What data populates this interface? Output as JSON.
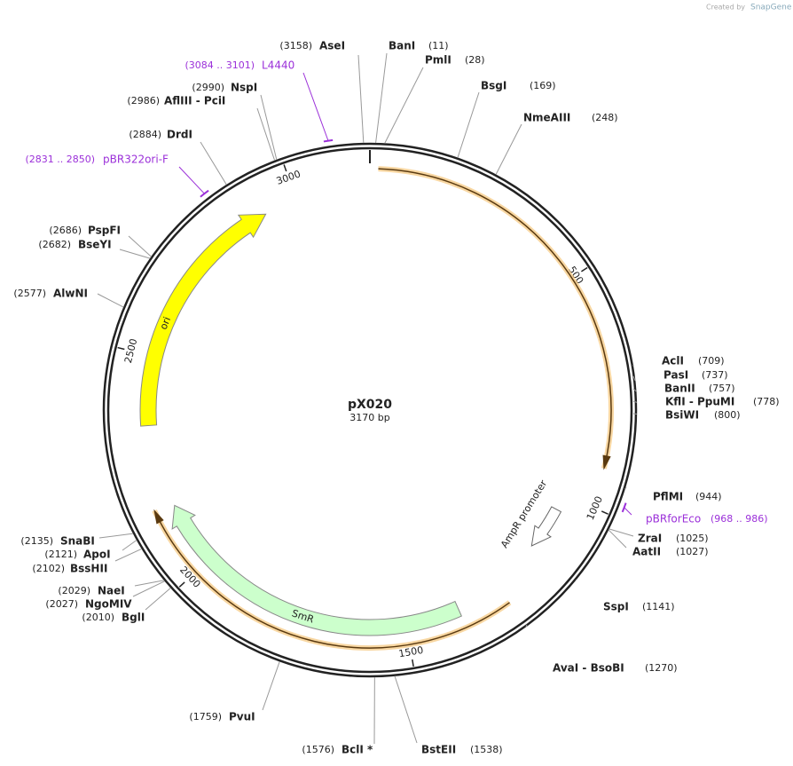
{
  "header": {
    "created_by": "Created by",
    "brand": "SnapGene"
  },
  "map": {
    "name": "pX020",
    "length": {
      "value": 3170,
      "label": "3170 bp"
    },
    "ticks": [
      500,
      1000,
      1500,
      2000,
      2500,
      3000
    ],
    "sites": [
      {
        "name": "AseI",
        "position": {
          "value": 3158,
          "label": "(3158)"
        }
      },
      {
        "name": "BanI",
        "position": {
          "value": 11,
          "label": "(11)"
        }
      },
      {
        "name": "PmlI",
        "position": {
          "value": 28,
          "label": "(28)"
        }
      },
      {
        "name": "BsgI",
        "position": {
          "value": 169,
          "label": "(169)"
        }
      },
      {
        "name": "NmeAIII",
        "position": {
          "value": 248,
          "label": "(248)"
        }
      },
      {
        "name": "AclI",
        "position": {
          "value": 709,
          "label": "(709)"
        }
      },
      {
        "name": "PasI",
        "position": {
          "value": 737,
          "label": "(737)"
        }
      },
      {
        "name": "BanII",
        "position": {
          "value": 757,
          "label": "(757)"
        }
      },
      {
        "name": "KflI - PpuMI",
        "position": {
          "value": 778,
          "label": "(778)"
        }
      },
      {
        "name": "BsiWI",
        "position": {
          "value": 800,
          "label": "(800)"
        }
      },
      {
        "name": "PflMI",
        "position": {
          "value": 944,
          "label": "(944)"
        }
      },
      {
        "name": "ZraI",
        "position": {
          "value": 1025,
          "label": "(1025)"
        }
      },
      {
        "name": "AatII",
        "position": {
          "value": 1027,
          "label": "(1027)"
        }
      },
      {
        "name": "SspI",
        "position": {
          "value": 1141,
          "label": "(1141)"
        }
      },
      {
        "name": "AvaI - BsoBI",
        "position": {
          "value": 1270,
          "label": "(1270)"
        }
      },
      {
        "name": "BstEII",
        "position": {
          "value": 1538,
          "label": "(1538)"
        }
      },
      {
        "name": "BclI *",
        "position": {
          "value": 1576,
          "label": "(1576)"
        }
      },
      {
        "name": "PvuI",
        "position": {
          "value": 1759,
          "label": "(1759)"
        }
      },
      {
        "name": "BglI",
        "position": {
          "value": 2010,
          "label": "(2010)"
        }
      },
      {
        "name": "NgoMIV",
        "position": {
          "value": 2027,
          "label": "(2027)"
        }
      },
      {
        "name": "NaeI",
        "position": {
          "value": 2029,
          "label": "(2029)"
        }
      },
      {
        "name": "BssHII",
        "position": {
          "value": 2102,
          "label": "(2102)"
        }
      },
      {
        "name": "ApoI",
        "position": {
          "value": 2121,
          "label": "(2121)"
        }
      },
      {
        "name": "SnaBI",
        "position": {
          "value": 2135,
          "label": "(2135)"
        }
      },
      {
        "name": "AlwNI",
        "position": {
          "value": 2577,
          "label": "(2577)"
        }
      },
      {
        "name": "BseYI",
        "position": {
          "value": 2682,
          "label": "(2682)"
        }
      },
      {
        "name": "PspFI",
        "position": {
          "value": 2686,
          "label": "(2686)"
        }
      },
      {
        "name": "DrdI",
        "position": {
          "value": 2884,
          "label": "(2884)"
        }
      },
      {
        "name": "AflIII - PciI",
        "position": {
          "value": 2986,
          "label": "(2986)"
        }
      },
      {
        "name": "NspI",
        "position": {
          "value": 2990,
          "label": "(2990)"
        }
      }
    ],
    "primers": [
      {
        "name": "L4440",
        "range": {
          "start": 3084,
          "end": 3101,
          "label": "(3084 .. 3101)"
        }
      },
      {
        "name": "pBR322ori-F",
        "range": {
          "start": 2831,
          "end": 2850,
          "label": "(2831 .. 2850)"
        }
      },
      {
        "name": "pBRforEco",
        "range": {
          "start": 968,
          "end": 986,
          "label": "(968 .. 986)"
        }
      }
    ],
    "features": [
      {
        "name": "ori"
      },
      {
        "name": "SmR"
      },
      {
        "name": "AmpR promoter"
      }
    ]
  }
}
